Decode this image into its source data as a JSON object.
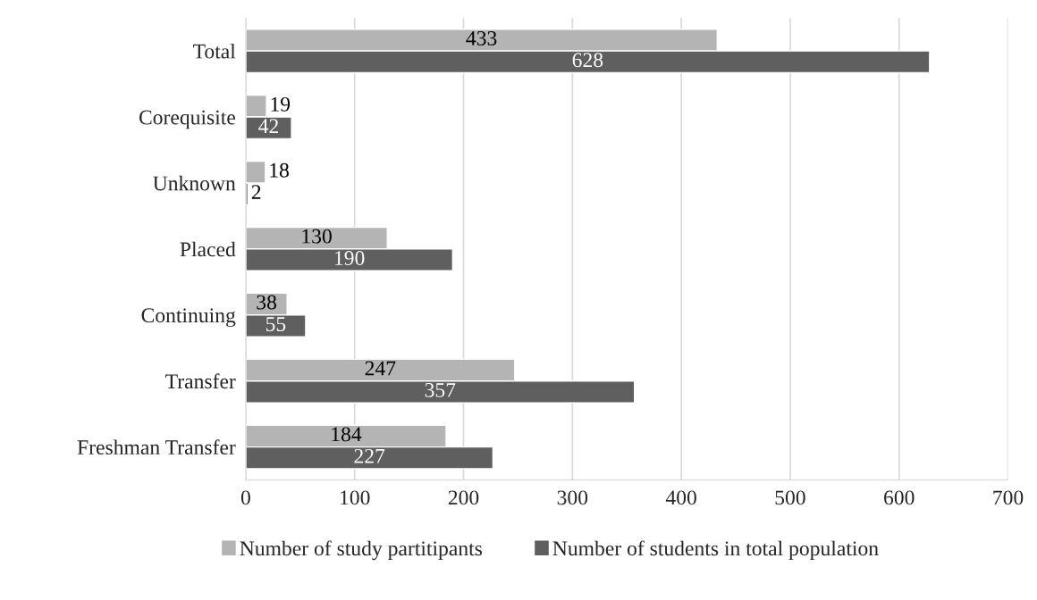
{
  "chart_data": {
    "type": "bar",
    "orientation": "horizontal",
    "categories": [
      "Total",
      "Corequisite",
      "Unknown",
      "Placed",
      "Continuing",
      "Transfer",
      "Freshman Transfer"
    ],
    "series": [
      {
        "name": "Number of study partitipants",
        "color": "#b4b4b4",
        "values": [
          433,
          19,
          18,
          130,
          38,
          247,
          184
        ]
      },
      {
        "name": "Number of students in total population",
        "color": "#5f5f5f",
        "values": [
          628,
          42,
          2,
          190,
          55,
          357,
          227
        ]
      }
    ],
    "xlim": [
      0,
      700
    ],
    "xticks": [
      0,
      100,
      200,
      300,
      400,
      500,
      600,
      700
    ],
    "grid": "x",
    "legend": "bottom",
    "data_labels": true
  }
}
